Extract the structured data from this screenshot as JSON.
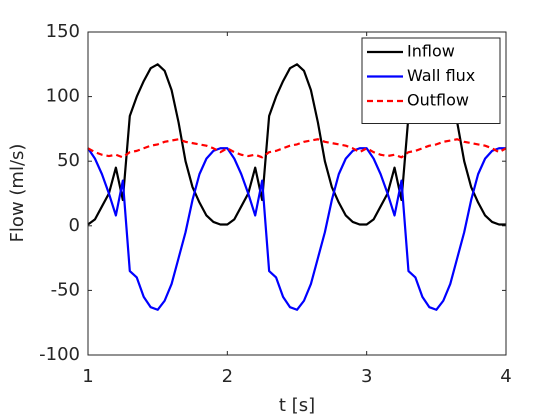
{
  "chart_data": {
    "type": "line",
    "xlabel": "t [s]",
    "ylabel": "Flow (ml/s)",
    "xlim": [
      1,
      4
    ],
    "ylim": [
      -100,
      150
    ],
    "xticks": [
      1,
      2,
      3,
      4
    ],
    "yticks": [
      -100,
      -50,
      0,
      50,
      100,
      150
    ],
    "grid": false,
    "legend": "northeast",
    "x": [
      1.0,
      1.05,
      1.1,
      1.15,
      1.2,
      1.25,
      1.3,
      1.35,
      1.4,
      1.45,
      1.5,
      1.55,
      1.6,
      1.65,
      1.7,
      1.75,
      1.8,
      1.85,
      1.9,
      1.95,
      2.0,
      2.05,
      2.1,
      2.15,
      2.2,
      2.25,
      2.3,
      2.35,
      2.4,
      2.45,
      2.5,
      2.55,
      2.6,
      2.65,
      2.7,
      2.75,
      2.8,
      2.85,
      2.9,
      2.95,
      3.0,
      3.05,
      3.1,
      3.15,
      3.2,
      3.25,
      3.3,
      3.35,
      3.4,
      3.45,
      3.5,
      3.55,
      3.6,
      3.65,
      3.7,
      3.75,
      3.8,
      3.85,
      3.9,
      3.95,
      4.0
    ],
    "series": [
      {
        "name": "Inflow",
        "color": "#000000",
        "dash": false,
        "values": [
          1,
          5,
          15,
          25,
          45,
          20,
          85,
          100,
          112,
          122,
          125,
          120,
          105,
          80,
          50,
          30,
          18,
          8,
          3,
          1,
          1,
          5,
          15,
          25,
          45,
          20,
          85,
          100,
          112,
          122,
          125,
          120,
          105,
          80,
          50,
          30,
          18,
          8,
          3,
          1,
          1,
          5,
          15,
          25,
          45,
          20,
          85,
          100,
          112,
          122,
          125,
          120,
          105,
          80,
          50,
          30,
          18,
          8,
          3,
          1,
          1
        ]
      },
      {
        "name": "Wall flux",
        "color": "#0000ff",
        "dash": false,
        "values": [
          60,
          52,
          40,
          25,
          8,
          35,
          -35,
          -40,
          -55,
          -63,
          -65,
          -58,
          -45,
          -25,
          -5,
          20,
          40,
          52,
          58,
          60,
          60,
          52,
          40,
          25,
          8,
          35,
          -35,
          -40,
          -55,
          -63,
          -65,
          -58,
          -45,
          -25,
          -5,
          20,
          40,
          52,
          58,
          60,
          60,
          52,
          40,
          25,
          8,
          35,
          -35,
          -40,
          -55,
          -63,
          -65,
          -58,
          -45,
          -25,
          -5,
          20,
          40,
          52,
          58,
          60,
          60
        ]
      },
      {
        "name": "Outflow",
        "color": "#ff0000",
        "dash": true,
        "values": [
          60,
          57,
          55,
          54,
          55,
          53,
          57,
          58,
          60,
          62,
          63,
          65,
          66,
          67,
          65,
          64,
          63,
          62,
          60,
          57,
          60,
          57,
          55,
          54,
          55,
          53,
          57,
          58,
          60,
          62,
          63,
          65,
          66,
          67,
          65,
          64,
          63,
          62,
          60,
          57,
          60,
          57,
          55,
          54,
          55,
          53,
          57,
          58,
          60,
          62,
          63,
          65,
          66,
          67,
          65,
          64,
          63,
          62,
          60,
          57,
          60
        ]
      }
    ]
  }
}
